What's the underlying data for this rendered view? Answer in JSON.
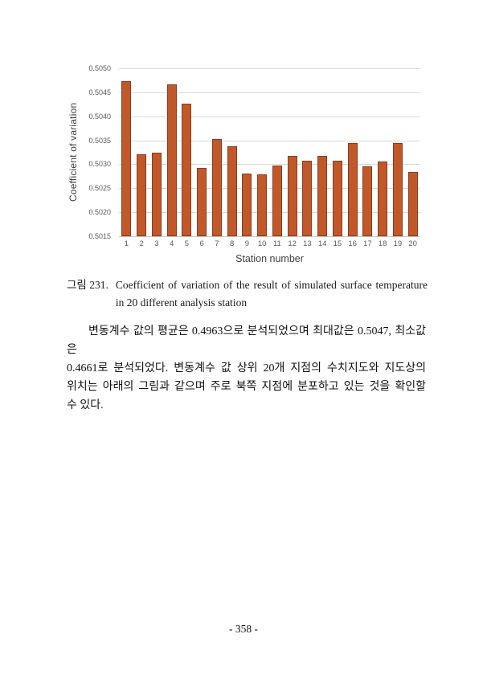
{
  "chart_data": {
    "type": "bar",
    "title": "",
    "xlabel": "Station number",
    "ylabel": "Coefficient of variation",
    "categories": [
      "1",
      "2",
      "3",
      "4",
      "5",
      "6",
      "7",
      "8",
      "9",
      "10",
      "11",
      "12",
      "13",
      "14",
      "15",
      "16",
      "17",
      "18",
      "19",
      "20"
    ],
    "values": [
      0.50473,
      0.50321,
      0.50324,
      0.50466,
      0.50427,
      0.50292,
      0.50353,
      0.50338,
      0.5028,
      0.50279,
      0.50298,
      0.50317,
      0.50308,
      0.50318,
      0.50307,
      0.50344,
      0.50296,
      0.50305,
      0.50345,
      0.50284
    ],
    "ylim": [
      0.5015,
      0.505
    ],
    "ytick_labels": [
      "0.5050",
      "0.5045",
      "0.5040",
      "0.5035",
      "0.5030",
      "0.5025",
      "0.5020",
      "0.5015"
    ],
    "grid": true,
    "legend": false,
    "colors": {
      "bar_fill": "#c1582a",
      "bar_border": "#8a3c1e",
      "gridline": "#d9d9d9",
      "tick_text": "#595959",
      "axis_title_text": "#3f3f3f"
    }
  },
  "caption": {
    "label": "그림 231.",
    "line1": "Coefficient of variation of the result of simulated surface temperature",
    "line2": "in 20 different analysis station"
  },
  "paragraph": {
    "lines": [
      "변동계수 값의 평균은 0.4963으로 분석되었으며 최대값은 0.5047, 최소값은",
      "0.4661로 분석되었다. 변동계수 값 상위 20개 지점의 수치지도와 지도상의",
      "위치는 아래의 그림과 같으며 주로 북쪽 지점에 분포하고 있는 것을 확인할",
      "수 있다."
    ]
  },
  "page": {
    "number": "- 358 -"
  }
}
